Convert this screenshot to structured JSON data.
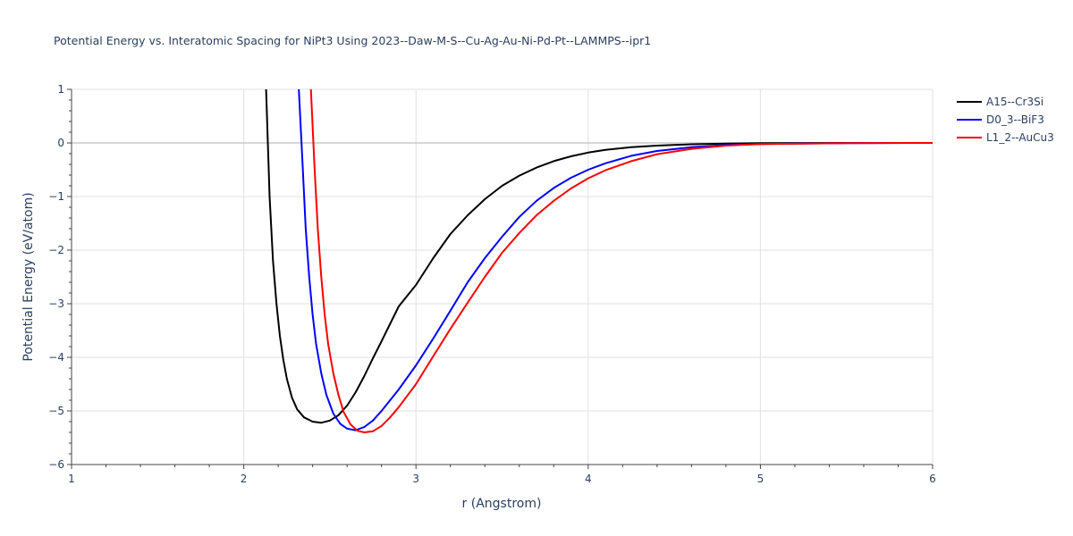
{
  "chart_data": {
    "type": "line",
    "title": "Potential Energy vs. Interatomic Spacing for NiPt3 Using 2023--Daw-M-S--Cu-Ag-Au-Ni-Pd-Pt--LAMMPS--ipr1",
    "xlabel": "r (Angstrom)",
    "ylabel": "Potential Energy (eV/atom)",
    "xlim": [
      1,
      6
    ],
    "ylim": [
      -6,
      1
    ],
    "xticks": [
      1,
      2,
      3,
      4,
      5,
      6
    ],
    "yticks": [
      1,
      0,
      -1,
      -2,
      -3,
      -4,
      -5,
      -6
    ],
    "ytick_labels": [
      "1",
      "0",
      "−1",
      "−2",
      "−3",
      "−4",
      "−5",
      "−6"
    ],
    "grid": true,
    "legend_position": "top-right",
    "series": [
      {
        "name": "A15--Cr3Si",
        "color": "#000000",
        "x": [
          2.13,
          2.15,
          2.17,
          2.19,
          2.21,
          2.23,
          2.25,
          2.28,
          2.31,
          2.35,
          2.4,
          2.45,
          2.5,
          2.55,
          2.6,
          2.65,
          2.7,
          2.75,
          2.8,
          2.9,
          3.0,
          3.1,
          3.2,
          3.3,
          3.4,
          3.5,
          3.6,
          3.7,
          3.8,
          3.9,
          4.0,
          4.1,
          4.25,
          4.4,
          4.6,
          4.8,
          5.0,
          5.5,
          6.0
        ],
        "y": [
          1.0,
          -1.0,
          -2.2,
          -3.0,
          -3.6,
          -4.05,
          -4.4,
          -4.75,
          -4.97,
          -5.12,
          -5.2,
          -5.22,
          -5.18,
          -5.08,
          -4.9,
          -4.65,
          -4.35,
          -4.02,
          -3.7,
          -3.05,
          -2.65,
          -2.15,
          -1.7,
          -1.35,
          -1.05,
          -0.8,
          -0.61,
          -0.46,
          -0.34,
          -0.25,
          -0.18,
          -0.13,
          -0.08,
          -0.05,
          -0.025,
          -0.012,
          -0.005,
          0.0,
          0.0
        ]
      },
      {
        "name": "D0_3--BiF3",
        "color": "#0000ff",
        "x": [
          2.32,
          2.34,
          2.36,
          2.38,
          2.4,
          2.42,
          2.45,
          2.48,
          2.52,
          2.56,
          2.6,
          2.65,
          2.7,
          2.75,
          2.8,
          2.9,
          3.0,
          3.1,
          3.2,
          3.3,
          3.4,
          3.5,
          3.6,
          3.7,
          3.8,
          3.9,
          4.0,
          4.1,
          4.25,
          4.4,
          4.6,
          4.8,
          5.0,
          5.5,
          6.0
        ],
        "y": [
          1.0,
          -0.3,
          -1.6,
          -2.5,
          -3.2,
          -3.75,
          -4.3,
          -4.7,
          -5.05,
          -5.24,
          -5.33,
          -5.36,
          -5.3,
          -5.18,
          -5.0,
          -4.6,
          -4.15,
          -3.65,
          -3.13,
          -2.6,
          -2.15,
          -1.75,
          -1.38,
          -1.08,
          -0.84,
          -0.65,
          -0.5,
          -0.38,
          -0.24,
          -0.15,
          -0.08,
          -0.04,
          -0.02,
          -0.003,
          0.0
        ]
      },
      {
        "name": "L1_2--AuCu3",
        "color": "#ff0000",
        "x": [
          2.39,
          2.41,
          2.43,
          2.45,
          2.47,
          2.49,
          2.52,
          2.55,
          2.58,
          2.62,
          2.66,
          2.7,
          2.75,
          2.8,
          2.85,
          2.9,
          3.0,
          3.1,
          3.2,
          3.3,
          3.4,
          3.5,
          3.6,
          3.7,
          3.8,
          3.9,
          4.0,
          4.1,
          4.25,
          4.4,
          4.6,
          4.8,
          5.0,
          5.5,
          6.0
        ],
        "y": [
          1.0,
          -0.4,
          -1.6,
          -2.5,
          -3.2,
          -3.75,
          -4.3,
          -4.7,
          -5.02,
          -5.25,
          -5.37,
          -5.4,
          -5.38,
          -5.28,
          -5.12,
          -4.93,
          -4.5,
          -3.98,
          -3.47,
          -2.98,
          -2.5,
          -2.05,
          -1.68,
          -1.35,
          -1.08,
          -0.85,
          -0.66,
          -0.51,
          -0.34,
          -0.21,
          -0.11,
          -0.05,
          -0.022,
          -0.004,
          0.0
        ]
      }
    ]
  }
}
